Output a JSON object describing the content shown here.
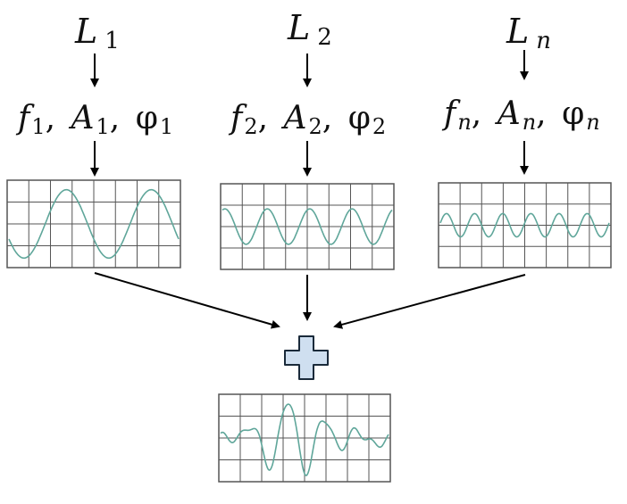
{
  "sources": [
    {
      "label_letter": "L",
      "label_sub": "1",
      "freq_symbol": "f",
      "amp_symbol": "A",
      "phase_symbol": "φ",
      "param_sub": "1",
      "separator": ",",
      "wave": {
        "cycles": 2.0,
        "amplitude": 0.85,
        "phase": 3.6
      }
    },
    {
      "label_letter": "L",
      "label_sub": "2",
      "freq_symbol": "f",
      "amp_symbol": "A",
      "phase_symbol": "φ",
      "param_sub": "2",
      "separator": ",",
      "wave": {
        "cycles": 4.0,
        "amplitude": 0.45,
        "phase": 1.2
      }
    },
    {
      "label_letter": "L",
      "label_sub": "n",
      "freq_symbol": "f",
      "amp_symbol": "A",
      "phase_symbol": "φ",
      "param_sub": "n",
      "separator": ",",
      "wave": {
        "cycles": 6.0,
        "amplitude": 0.3,
        "phase": 0.2
      }
    }
  ],
  "sum_symbol": "plus",
  "colors": {
    "waveform": "#5fa69a",
    "grid": "#555555",
    "arrow": "#000000",
    "plus_fill": "#cfdff0",
    "plus_stroke": "#1a2a3a"
  }
}
